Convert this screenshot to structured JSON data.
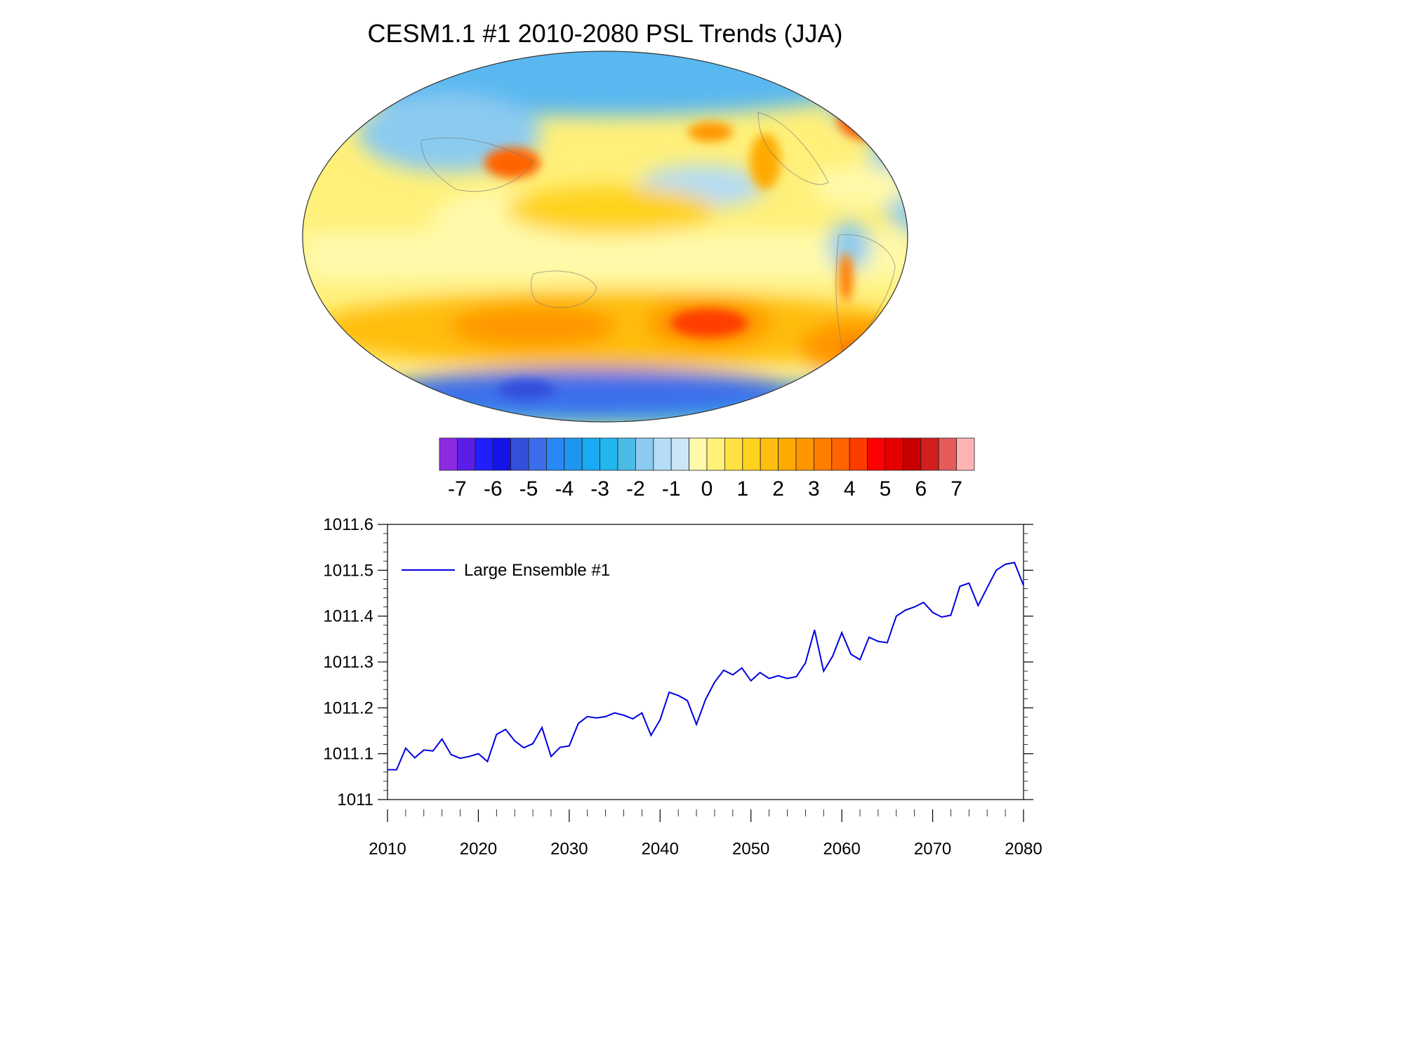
{
  "chart_data": [
    {
      "type": "heatmap",
      "title": "CESM1.1 #1 2010-2080 PSL Trends (JJA)",
      "projection": "global map",
      "colorbar": {
        "tick_labels": [
          "-7",
          "-6",
          "-5",
          "-4",
          "-3",
          "-2",
          "-1",
          "0",
          "1",
          "2",
          "3",
          "4",
          "5",
          "6",
          "7"
        ],
        "colors": [
          "#8a2be2",
          "#5a1ee6",
          "#1f1fff",
          "#1414e6",
          "#3250dc",
          "#3c6eeb",
          "#2888f5",
          "#1e96f0",
          "#19aaf5",
          "#22b6ee",
          "#4bbbe6",
          "#8ccbf0",
          "#b4dcf5",
          "#cce6f5",
          "#fffaaa",
          "#fff07a",
          "#ffe141",
          "#ffd21e",
          "#ffbe0f",
          "#ffaa00",
          "#ff9600",
          "#ff7d00",
          "#ff6400",
          "#ff3c00",
          "#ff0000",
          "#e60000",
          "#c80000",
          "#d21e1e",
          "#e65a5a",
          "#ffb4b4"
        ]
      }
    },
    {
      "type": "line",
      "x": [
        2010,
        2011,
        2012,
        2013,
        2014,
        2015,
        2016,
        2017,
        2018,
        2019,
        2020,
        2021,
        2022,
        2023,
        2024,
        2025,
        2026,
        2027,
        2028,
        2029,
        2030,
        2031,
        2032,
        2033,
        2034,
        2035,
        2036,
        2037,
        2038,
        2039,
        2040,
        2041,
        2042,
        2043,
        2044,
        2045,
        2046,
        2047,
        2048,
        2049,
        2050,
        2051,
        2052,
        2053,
        2054,
        2055,
        2056,
        2057,
        2058,
        2059,
        2060,
        2061,
        2062,
        2063,
        2064,
        2065,
        2066,
        2067,
        2068,
        2069,
        2070,
        2071,
        2072,
        2073,
        2074,
        2075,
        2076,
        2077,
        2078,
        2079,
        2080
      ],
      "series": [
        {
          "name": "Large Ensemble #1",
          "color": "#0000e0",
          "values": [
            1011.065,
            1011.065,
            1011.112,
            1011.091,
            1011.108,
            1011.106,
            1011.132,
            1011.098,
            1011.09,
            1011.094,
            1011.1,
            1011.083,
            1011.142,
            1011.153,
            1011.128,
            1011.113,
            1011.122,
            1011.157,
            1011.094,
            1011.114,
            1011.117,
            1011.166,
            1011.181,
            1011.178,
            1011.181,
            1011.189,
            1011.184,
            1011.176,
            1011.189,
            1011.14,
            1011.174,
            1011.234,
            1011.227,
            1011.216,
            1011.164,
            1011.218,
            1011.256,
            1011.282,
            1011.272,
            1011.287,
            1011.259,
            1011.277,
            1011.264,
            1011.27,
            1011.264,
            1011.268,
            1011.298,
            1011.37,
            1011.28,
            1011.313,
            1011.364,
            1011.317,
            1011.305,
            1011.354,
            1011.345,
            1011.342,
            1011.4,
            1011.413,
            1011.42,
            1011.43,
            1011.408,
            1011.398,
            1011.402,
            1011.465,
            1011.472,
            1011.423,
            1011.462,
            1011.5,
            1011.513,
            1011.517,
            1011.467
          ]
        }
      ],
      "xlim": [
        2010,
        2080
      ],
      "ylim": [
        1011,
        1011.6
      ],
      "x_ticks": [
        "2010",
        "2020",
        "2030",
        "2040",
        "2050",
        "2060",
        "2070",
        "2080"
      ],
      "y_ticks": [
        "1011",
        "1011.1",
        "1011.2",
        "1011.3",
        "1011.4",
        "1011.5",
        "1011.6"
      ],
      "legend_position": "top-left"
    }
  ]
}
